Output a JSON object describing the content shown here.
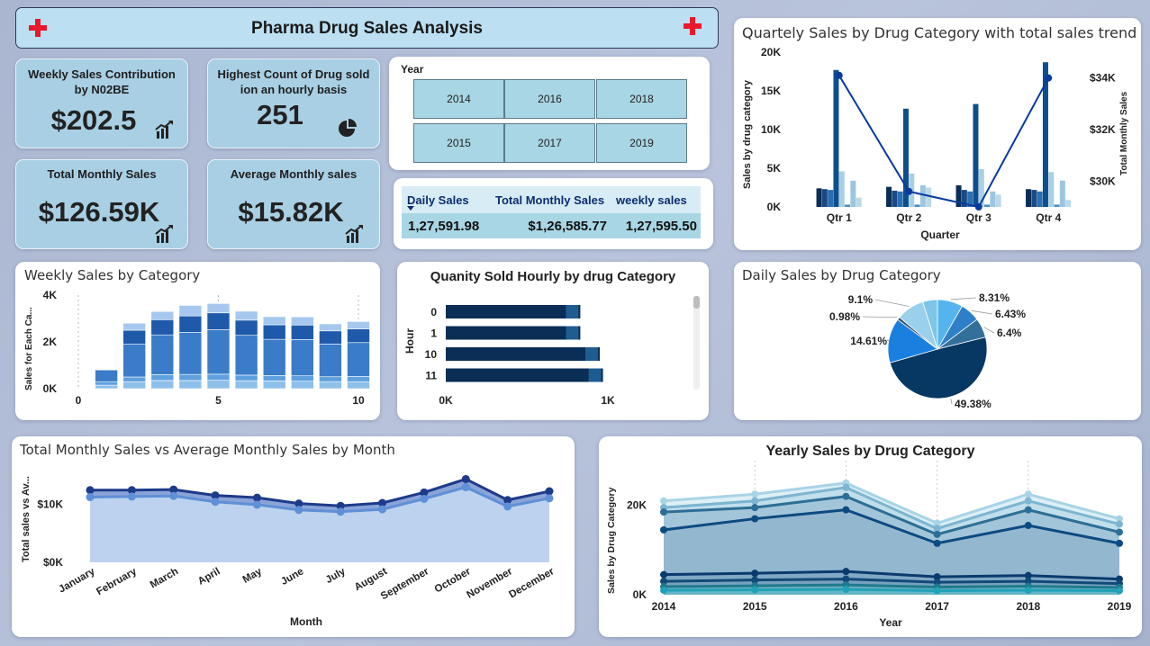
{
  "header": {
    "title": "Pharma Drug Sales Analysis",
    "accent": "#e8192c"
  },
  "kpis": [
    {
      "label": "Weekly Sales Contribution by N02BE",
      "value": "$202.5",
      "icon": "line-chart-icon"
    },
    {
      "label": "Highest Count of Drug sold ion an hourly basis",
      "value": "251",
      "icon": "pie-chart-icon"
    },
    {
      "label": "Total Monthly Sales",
      "value": "$126.59K",
      "icon": "line-chart-icon"
    },
    {
      "label": "Average Monthly sales",
      "value": "$15.82K",
      "icon": "line-chart-icon"
    }
  ],
  "year_slicer": {
    "title": "Year",
    "years": [
      "2014",
      "2016",
      "2018",
      "2015",
      "2017",
      "2019"
    ]
  },
  "sales_table": {
    "headers": [
      "Daily Sales",
      "Total Monthly Sales",
      "weekly sales"
    ],
    "values": [
      "1,27,591.98",
      "$1,26,585.77",
      "1,27,595.50"
    ]
  },
  "quarterly": {
    "title": "Quartely Sales by Drug Category with total sales trend",
    "ylabel": "Sales by drug category",
    "y2label": "Total Monthly Sales",
    "xlabel": "Quarter",
    "y_ticks": [
      "20K",
      "15K",
      "10K",
      "5K",
      "0K"
    ],
    "y2_ticks": [
      "$34K",
      "$32K",
      "$30K"
    ]
  },
  "weekly": {
    "title": "Weekly Sales by Category",
    "ylabel": "Sales for Each Ca...",
    "y_ticks": [
      "4K",
      "2K",
      "0K"
    ],
    "x_ticks": [
      "0",
      "5",
      "10"
    ]
  },
  "hourly": {
    "title": "Quanity Sold Hourly by drug Category",
    "ylabel": "Hour",
    "x_ticks": [
      "0K",
      "1K"
    ]
  },
  "daily": {
    "title": "Daily Sales by Drug Category"
  },
  "monthly": {
    "title": "Total Monthly Sales vs Average Monthly Sales by Month",
    "ylabel": "Total sales vs Av...",
    "xlabel": "Month",
    "y_ticks": [
      "$10K",
      "$0K"
    ]
  },
  "yearly": {
    "title": "Yearly Sales by Drug Category",
    "ylabel": "Sales by Drug Category",
    "xlabel": "Year",
    "y_ticks": [
      "20K",
      "0K"
    ]
  },
  "chart_data": [
    {
      "type": "bar",
      "title": "Quartely Sales by Drug Category with total sales trend",
      "xlabel": "Quarter",
      "ylabel": "Sales by drug category",
      "categories": [
        "Qtr 1",
        "Qtr 2",
        "Qtr 3",
        "Qtr 4"
      ],
      "ylim": [
        0,
        20000
      ],
      "y2lim": [
        29000,
        35000
      ],
      "series": [
        {
          "values": [
            2400,
            2600,
            2800,
            2300
          ],
          "color": "#0c2d55"
        },
        {
          "values": [
            2300,
            2100,
            2200,
            2200
          ],
          "color": "#1a4a86"
        },
        {
          "values": [
            2200,
            2000,
            2000,
            2000
          ],
          "color": "#2a6fb0"
        },
        {
          "values": [
            17700,
            12700,
            13300,
            18700
          ],
          "color": "#0d4e8c"
        },
        {
          "values": [
            4600,
            4300,
            4900,
            4500
          ],
          "color": "#a9cfe4"
        },
        {
          "values": [
            300,
            300,
            300,
            300
          ],
          "color": "#4a8fc4"
        },
        {
          "values": [
            3400,
            2800,
            2000,
            3400
          ],
          "color": "#9cc6e0"
        },
        {
          "values": [
            1200,
            2500,
            1600,
            900
          ],
          "color": "#bcd9ea"
        }
      ],
      "line": {
        "values": [
          34100,
          29600,
          29000,
          34000
        ],
        "color": "#0a3aa0"
      }
    },
    {
      "type": "bar",
      "title": "Weekly Sales by Category",
      "ylabel": "Sales for Each Ca...",
      "categories": [
        1,
        2,
        3,
        4,
        5,
        6,
        7,
        8,
        9,
        10
      ],
      "ylim": [
        0,
        4000
      ],
      "series": [
        {
          "values": [
            150,
            300,
            350,
            350,
            360,
            340,
            330,
            320,
            300,
            300
          ],
          "color": "#8fc0ea"
        },
        {
          "values": [
            150,
            200,
            250,
            260,
            260,
            240,
            230,
            230,
            210,
            220
          ],
          "color": "#5fa0de"
        },
        {
          "values": [
            500,
            1400,
            1700,
            1800,
            1900,
            1700,
            1550,
            1550,
            1400,
            1450
          ],
          "color": "#3a7cc8"
        },
        {
          "values": [
            0,
            600,
            650,
            700,
            720,
            650,
            620,
            620,
            560,
            580
          ],
          "color": "#1f5aaa"
        },
        {
          "values": [
            0,
            300,
            350,
            450,
            400,
            380,
            350,
            350,
            300,
            320
          ],
          "color": "#a6c8ee"
        }
      ]
    },
    {
      "type": "bar",
      "title": "Quanity Sold Hourly by drug Category",
      "ylabel": "Hour",
      "categories": [
        "0",
        "1",
        "10",
        "11"
      ],
      "values": [
        830,
        830,
        950,
        970
      ],
      "xlim": [
        0,
        1000
      ]
    },
    {
      "type": "pie",
      "title": "Daily Sales by Drug Category",
      "labels": [
        "8.31%",
        "6.43%",
        "6.4%",
        "49.38%",
        "14.61%",
        "0.98%",
        "9.1%"
      ],
      "values": [
        8.31,
        6.43,
        6.4,
        49.38,
        14.61,
        0.98,
        9.1
      ],
      "colors": [
        "#55b4ee",
        "#2f7fc8",
        "#336f9b",
        "#073763",
        "#1a80e0",
        "#2a4e6e",
        "#9ad0ec"
      ],
      "extra_slice": {
        "value": 4.79,
        "color": "#7dc6e8"
      }
    },
    {
      "type": "area",
      "title": "Total Monthly Sales vs Average Monthly Sales by Month",
      "xlabel": "Month",
      "ylabel": "Total sales vs Av...",
      "categories": [
        "January",
        "February",
        "March",
        "April",
        "May",
        "June",
        "July",
        "August",
        "September",
        "October",
        "November",
        "December"
      ],
      "ylim": [
        0,
        17000
      ],
      "series": [
        {
          "values": [
            12400,
            12400,
            12500,
            11500,
            11100,
            10100,
            9700,
            10200,
            12000,
            14300,
            10700,
            12200
          ],
          "color": "#1e3a8a"
        },
        {
          "values": [
            11200,
            11300,
            11400,
            10400,
            9900,
            9000,
            8700,
            9100,
            10900,
            12900,
            9600,
            11000
          ],
          "color": "#5f8fd6"
        }
      ]
    },
    {
      "type": "area",
      "title": "Yearly Sales by Drug Category",
      "xlabel": "Year",
      "ylabel": "Sales by Drug Category",
      "categories": [
        "2014",
        "2015",
        "2016",
        "2017",
        "2018",
        "2019"
      ],
      "ylim": [
        0,
        30000
      ],
      "series": [
        {
          "values": [
            21000,
            22500,
            25000,
            16000,
            22500,
            17000
          ],
          "color": "#a8d4e6"
        },
        {
          "values": [
            19500,
            21000,
            24000,
            14800,
            21000,
            15800
          ],
          "color": "#7cb5d1"
        },
        {
          "values": [
            18500,
            19500,
            22000,
            13500,
            19000,
            14000
          ],
          "color": "#2c6e96"
        },
        {
          "values": [
            14500,
            17000,
            19000,
            11500,
            15500,
            11500
          ],
          "color": "#0c4a82"
        },
        {
          "values": [
            4500,
            4800,
            5200,
            4000,
            4300,
            3500
          ],
          "color": "#0a3a6e"
        },
        {
          "values": [
            3000,
            3300,
            3500,
            2800,
            3000,
            2500
          ],
          "color": "#114a78"
        },
        {
          "values": [
            1800,
            2000,
            2200,
            1700,
            1900,
            1600
          ],
          "color": "#1e7a8c"
        },
        {
          "values": [
            1000,
            1100,
            1200,
            900,
            1000,
            900
          ],
          "color": "#20a2b8"
        }
      ]
    }
  ]
}
